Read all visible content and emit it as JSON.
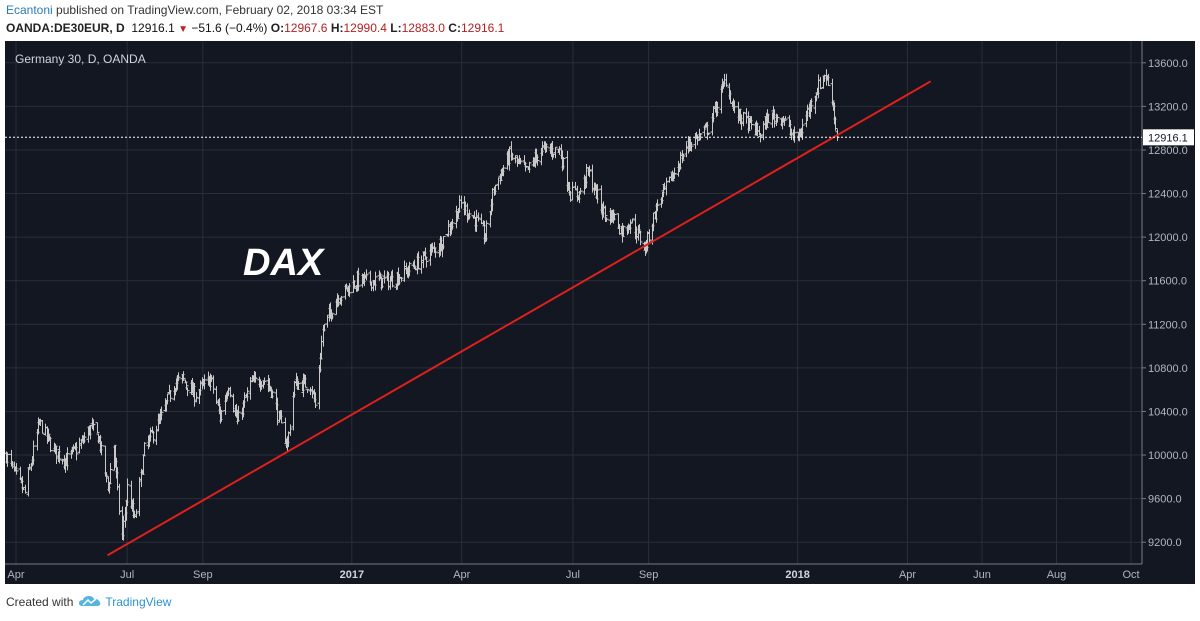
{
  "header": {
    "publisher": "Ecantoni",
    "published_text": "published on TradingView.com, February 02, 2018 03:34 EST",
    "symbol": "OANDA:DE30EUR, D",
    "last": "12916.1",
    "change_arrow": "▼",
    "change": "−51.6 (−0.4%)",
    "o_label": "O:",
    "o_value": "12967.6",
    "h_label": "H:",
    "h_value": "12990.4",
    "l_label": "L:",
    "l_value": "12883.0",
    "c_label": "C:",
    "c_value": "12916.1"
  },
  "footer": {
    "created_with": "Created with",
    "brand": "TradingView",
    "logo_icon": "tradingview-cloud-icon"
  },
  "colors": {
    "background": "#131722",
    "grid": "#2a2e39",
    "bars": "#c8c8c8",
    "trendline": "#e0201c",
    "text": "#b2b5be",
    "up_change": "#c0201c"
  },
  "chart_data": {
    "type": "ohlc",
    "title": "Germany 30, D, OANDA",
    "annotation": "DAX",
    "last_price": 12916.1,
    "last_price_label": "12916.1",
    "ylim": [
      9000,
      13800
    ],
    "yticks": [
      9200,
      9600,
      10000,
      10400,
      10800,
      11200,
      11600,
      12000,
      12400,
      12800,
      13200,
      13600
    ],
    "ytick_labels": [
      "9200.0",
      "9600.0",
      "10000.0",
      "10400.0",
      "10800.0",
      "11200.0",
      "11600.0",
      "12000.0",
      "12400.0",
      "12800.0",
      "13200.0",
      "13600.0"
    ],
    "x_range": [
      "2016-03-23",
      "2018-10-10"
    ],
    "x_ticks": [
      {
        "date": "2016-04-01",
        "label": "Apr",
        "bold": false
      },
      {
        "date": "2016-07-01",
        "label": "Jul",
        "bold": false
      },
      {
        "date": "2016-09-01",
        "label": "Sep",
        "bold": false
      },
      {
        "date": "2017-01-01",
        "label": "2017",
        "bold": true
      },
      {
        "date": "2017-04-01",
        "label": "Apr",
        "bold": false
      },
      {
        "date": "2017-07-01",
        "label": "Jul",
        "bold": false
      },
      {
        "date": "2017-09-01",
        "label": "Sep",
        "bold": false
      },
      {
        "date": "2018-01-01",
        "label": "2018",
        "bold": true
      },
      {
        "date": "2018-04-01",
        "label": "Apr",
        "bold": false
      },
      {
        "date": "2018-06-01",
        "label": "Jun",
        "bold": false
      },
      {
        "date": "2018-08-01",
        "label": "Aug",
        "bold": false
      },
      {
        "date": "2018-10-01",
        "label": "Oct",
        "bold": false
      }
    ],
    "price_path": [
      [
        "2016-03-24",
        10000
      ],
      [
        "2016-04-01",
        9800
      ],
      [
        "2016-04-08",
        9650
      ],
      [
        "2016-04-20",
        10300
      ],
      [
        "2016-05-01",
        10050
      ],
      [
        "2016-05-12",
        9950
      ],
      [
        "2016-05-24",
        10100
      ],
      [
        "2016-06-01",
        10250
      ],
      [
        "2016-06-08",
        10150
      ],
      [
        "2016-06-15",
        9700
      ],
      [
        "2016-06-20",
        10100
      ],
      [
        "2016-06-24",
        9500
      ],
      [
        "2016-06-27",
        9250
      ],
      [
        "2016-07-01",
        9700
      ],
      [
        "2016-07-07",
        9400
      ],
      [
        "2016-07-15",
        10050
      ],
      [
        "2016-07-29",
        10350
      ],
      [
        "2016-08-08",
        10650
      ],
      [
        "2016-08-15",
        10700
      ],
      [
        "2016-08-25",
        10550
      ],
      [
        "2016-09-07",
        10700
      ],
      [
        "2016-09-15",
        10350
      ],
      [
        "2016-09-22",
        10650
      ],
      [
        "2016-09-29",
        10300
      ],
      [
        "2016-10-10",
        10650
      ],
      [
        "2016-10-20",
        10700
      ],
      [
        "2016-10-27",
        10600
      ],
      [
        "2016-11-04",
        10250
      ],
      [
        "2016-11-09",
        10100
      ],
      [
        "2016-11-15",
        10650
      ],
      [
        "2016-11-28",
        10650
      ],
      [
        "2016-12-02",
        10450
      ],
      [
        "2016-12-08",
        11150
      ],
      [
        "2016-12-20",
        11450
      ],
      [
        "2017-01-05",
        11600
      ],
      [
        "2017-01-20",
        11600
      ],
      [
        "2017-02-01",
        11600
      ],
      [
        "2017-02-10",
        11650
      ],
      [
        "2017-02-28",
        11800
      ],
      [
        "2017-03-15",
        11950
      ],
      [
        "2017-03-31",
        12300
      ],
      [
        "2017-04-13",
        12150
      ],
      [
        "2017-04-20",
        12000
      ],
      [
        "2017-04-27",
        12450
      ],
      [
        "2017-05-10",
        12750
      ],
      [
        "2017-05-24",
        12600
      ],
      [
        "2017-06-05",
        12800
      ],
      [
        "2017-06-20",
        12800
      ],
      [
        "2017-06-29",
        12400
      ],
      [
        "2017-07-06",
        12400
      ],
      [
        "2017-07-13",
        12600
      ],
      [
        "2017-07-20",
        12400
      ],
      [
        "2017-07-27",
        12200
      ],
      [
        "2017-08-03",
        12200
      ],
      [
        "2017-08-10",
        12050
      ],
      [
        "2017-08-17",
        12150
      ],
      [
        "2017-08-29",
        11900
      ],
      [
        "2017-09-08",
        12300
      ],
      [
        "2017-09-20",
        12550
      ],
      [
        "2017-10-03",
        12850
      ],
      [
        "2017-10-20",
        13000
      ],
      [
        "2017-11-03",
        13450
      ],
      [
        "2017-11-10",
        13150
      ],
      [
        "2017-11-20",
        13050
      ],
      [
        "2017-12-01",
        12950
      ],
      [
        "2017-12-08",
        13100
      ],
      [
        "2017-12-20",
        13100
      ],
      [
        "2017-12-29",
        12900
      ],
      [
        "2018-01-03",
        12950
      ],
      [
        "2018-01-12",
        13250
      ],
      [
        "2018-01-23",
        13500
      ],
      [
        "2018-01-29",
        13300
      ],
      [
        "2018-02-02",
        12916.1
      ]
    ],
    "trendline": {
      "start": [
        "2016-06-15",
        9080
      ],
      "end": [
        "2018-04-20",
        13430
      ]
    }
  }
}
